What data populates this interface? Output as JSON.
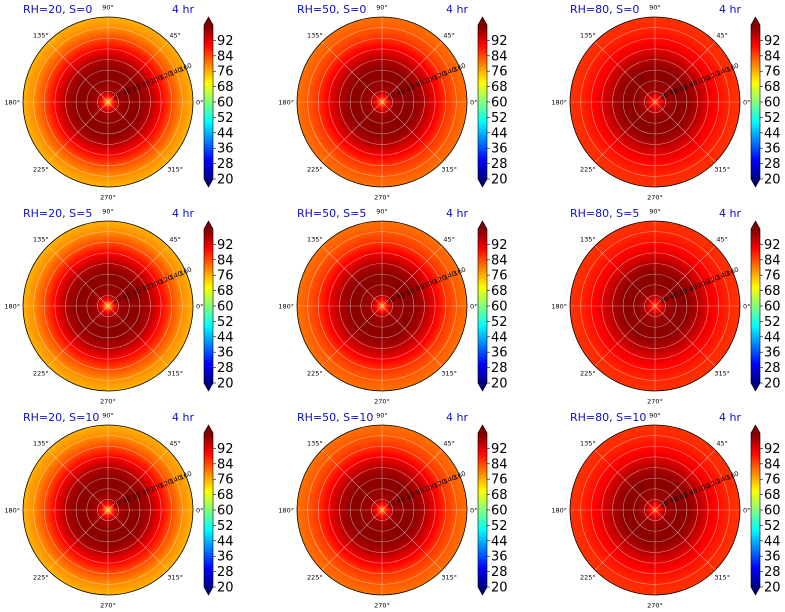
{
  "figure": {
    "time_label": "4 hr",
    "angle_ticks": [
      "0°",
      "45°",
      "90°",
      "135°",
      "180°",
      "225°",
      "270°",
      "315°"
    ],
    "radial_ticks": [
      "20",
      "40",
      "60",
      "80",
      "100",
      "120",
      "140",
      "160"
    ],
    "colorbar_ticks": [
      "20",
      "28",
      "36",
      "44",
      "52",
      "60",
      "68",
      "76",
      "84",
      "92"
    ],
    "colormap": [
      "#00007f",
      "#0000ff",
      "#007fff",
      "#00ffff",
      "#7fff7f",
      "#ffff00",
      "#ff7f00",
      "#ff0000",
      "#7f0000"
    ]
  },
  "chart_data": [
    {
      "type": "heatmap",
      "projection": "polar",
      "title": "RH=20, S=0",
      "annotation": "4 hr",
      "clim": [
        20,
        100
      ],
      "radial_range": [
        0,
        160
      ],
      "grid": true,
      "radial_profile": {
        "r": [
          0,
          10,
          20,
          40,
          60,
          80,
          100,
          120,
          140,
          160
        ],
        "value": [
          74,
          88,
          97,
          99,
          99,
          96,
          90,
          84,
          79,
          76
        ]
      }
    },
    {
      "type": "heatmap",
      "projection": "polar",
      "title": "RH=50, S=0",
      "annotation": "4 hr",
      "clim": [
        20,
        100
      ],
      "radial_range": [
        0,
        160
      ],
      "grid": true,
      "radial_profile": {
        "r": [
          0,
          10,
          20,
          40,
          60,
          80,
          100,
          120,
          140,
          160
        ],
        "value": [
          79,
          89,
          97,
          99,
          99,
          96,
          91,
          86,
          83,
          81
        ]
      }
    },
    {
      "type": "heatmap",
      "projection": "polar",
      "title": "RH=80, S=0",
      "annotation": "4 hr",
      "clim": [
        20,
        100
      ],
      "radial_range": [
        0,
        160
      ],
      "grid": true,
      "radial_profile": {
        "r": [
          0,
          10,
          20,
          40,
          60,
          80,
          100,
          120,
          140,
          160
        ],
        "value": [
          83,
          91,
          97,
          99,
          99,
          96,
          92,
          89,
          87,
          86
        ]
      }
    },
    {
      "type": "heatmap",
      "projection": "polar",
      "title": "RH=20, S=5",
      "annotation": "4 hr",
      "clim": [
        20,
        100
      ],
      "radial_range": [
        0,
        160
      ],
      "grid": true,
      "radial_profile": {
        "r": [
          0,
          10,
          20,
          40,
          60,
          80,
          100,
          120,
          140,
          160
        ],
        "value": [
          74,
          88,
          97,
          99,
          99,
          96,
          90,
          84,
          79,
          76
        ]
      }
    },
    {
      "type": "heatmap",
      "projection": "polar",
      "title": "RH=50, S=5",
      "annotation": "4 hr",
      "clim": [
        20,
        100
      ],
      "radial_range": [
        0,
        160
      ],
      "grid": true,
      "radial_profile": {
        "r": [
          0,
          10,
          20,
          40,
          60,
          80,
          100,
          120,
          140,
          160
        ],
        "value": [
          79,
          89,
          97,
          99,
          99,
          96,
          91,
          86,
          83,
          81
        ]
      }
    },
    {
      "type": "heatmap",
      "projection": "polar",
      "title": "RH=80, S=5",
      "annotation": "4 hr",
      "clim": [
        20,
        100
      ],
      "radial_range": [
        0,
        160
      ],
      "grid": true,
      "radial_profile": {
        "r": [
          0,
          10,
          20,
          40,
          60,
          80,
          100,
          120,
          140,
          160
        ],
        "value": [
          83,
          91,
          97,
          99,
          99,
          96,
          92,
          89,
          87,
          86
        ]
      }
    },
    {
      "type": "heatmap",
      "projection": "polar",
      "title": "RH=20, S=10",
      "annotation": "4 hr",
      "clim": [
        20,
        100
      ],
      "radial_range": [
        0,
        160
      ],
      "grid": true,
      "radial_profile": {
        "r": [
          0,
          10,
          20,
          40,
          60,
          80,
          100,
          120,
          140,
          160
        ],
        "value": [
          74,
          88,
          97,
          99,
          99,
          96,
          90,
          84,
          79,
          76
        ]
      }
    },
    {
      "type": "heatmap",
      "projection": "polar",
      "title": "RH=50, S=10",
      "annotation": "4 hr",
      "clim": [
        20,
        100
      ],
      "radial_range": [
        0,
        160
      ],
      "grid": true,
      "radial_profile": {
        "r": [
          0,
          10,
          20,
          40,
          60,
          80,
          100,
          120,
          140,
          160
        ],
        "value": [
          79,
          89,
          97,
          99,
          99,
          96,
          91,
          86,
          83,
          81
        ]
      }
    },
    {
      "type": "heatmap",
      "projection": "polar",
      "title": "RH=80, S=10",
      "annotation": "4 hr",
      "clim": [
        20,
        100
      ],
      "radial_range": [
        0,
        160
      ],
      "grid": true,
      "radial_profile": {
        "r": [
          0,
          10,
          20,
          40,
          60,
          80,
          100,
          120,
          140,
          160
        ],
        "value": [
          83,
          91,
          97,
          99,
          99,
          96,
          92,
          89,
          87,
          86
        ]
      }
    }
  ]
}
